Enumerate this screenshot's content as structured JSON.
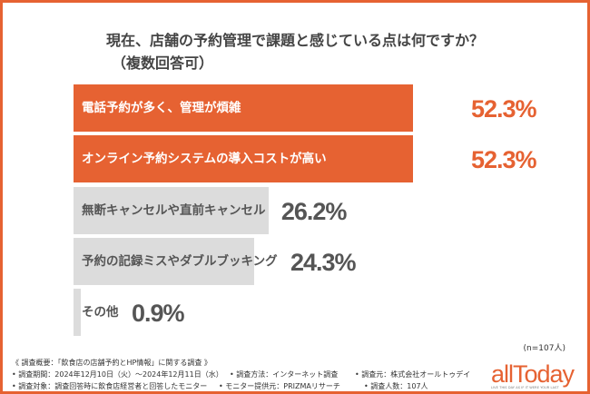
{
  "chart_data": {
    "type": "bar",
    "orientation": "horizontal",
    "title": "現在、店舗の予約管理で課題と感じている点は何ですか？",
    "subtitle": "（複数回答可）",
    "categories": [
      "電話予約が多く、管理が煩雑",
      "オンライン予約システムの導入コストが高い",
      "無断キャンセルや直前キャンセル",
      "予約の記録ミスやダブルブッキング",
      "その他"
    ],
    "values": [
      52.3,
      52.3,
      26.2,
      24.3,
      0.9
    ],
    "value_labels": [
      "52.3%",
      "52.3%",
      "26.2%",
      "24.3%",
      "0.9%"
    ],
    "highlight": [
      true,
      true,
      false,
      false,
      false
    ],
    "colors": {
      "highlight": "#E66232",
      "default": "#DCDCDC",
      "highlight_text": "#ffffff",
      "default_text": "#555555"
    },
    "sample_note": "(n=107人)"
  },
  "footer": {
    "heading": "《 調査概要：「飲食店の店舗予約とHP情報」に関する調査 》",
    "period": "• 調査期間：2024年12月10日（火）～2024年12月11日（水）",
    "method": "• 調査方法：インターネット調査",
    "source": "• 調査元：株式会社オールトゥデイ",
    "target": "• 調査対象：調査回答時に飲食店経営者と回答したモニター",
    "provider": "• モニター提供元：PRIZMAリサーチ",
    "count": "• 調査人数：107人"
  },
  "logo": {
    "name": "allToday",
    "tagline": "LIVE THIS DAY AS IF IT WERE YOUR LAST"
  }
}
